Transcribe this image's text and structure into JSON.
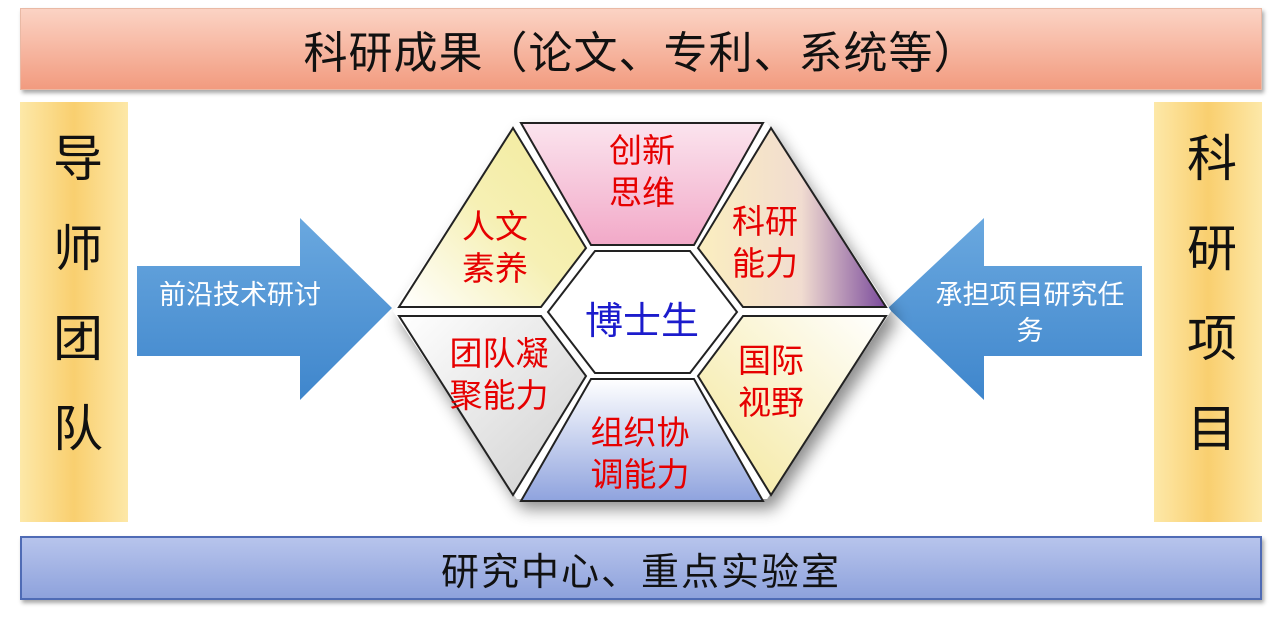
{
  "top_banner": "科研成果（论文、专利、系统等）",
  "bottom_banner": "研究中心、重点实验室",
  "left_panel": "导师团队",
  "right_panel": "科研项目",
  "left_arrow": "前沿技术研讨",
  "right_arrow": "承担项目研究任务",
  "center": "博士生",
  "segments": {
    "top": "创新思维",
    "upper_left": "人文素养",
    "upper_right": "科研能力",
    "lower_left": "团队凝聚能力",
    "lower_right": "国际视野",
    "bottom": "组织协调能力"
  },
  "colors": {
    "top_banner": "#f4a488",
    "bottom_banner": "#98a9df",
    "side_panels": "#f9cf6f",
    "arrows": "#5b9bd5",
    "segment_label": "#e60000",
    "center_label": "#1c1ccc"
  }
}
